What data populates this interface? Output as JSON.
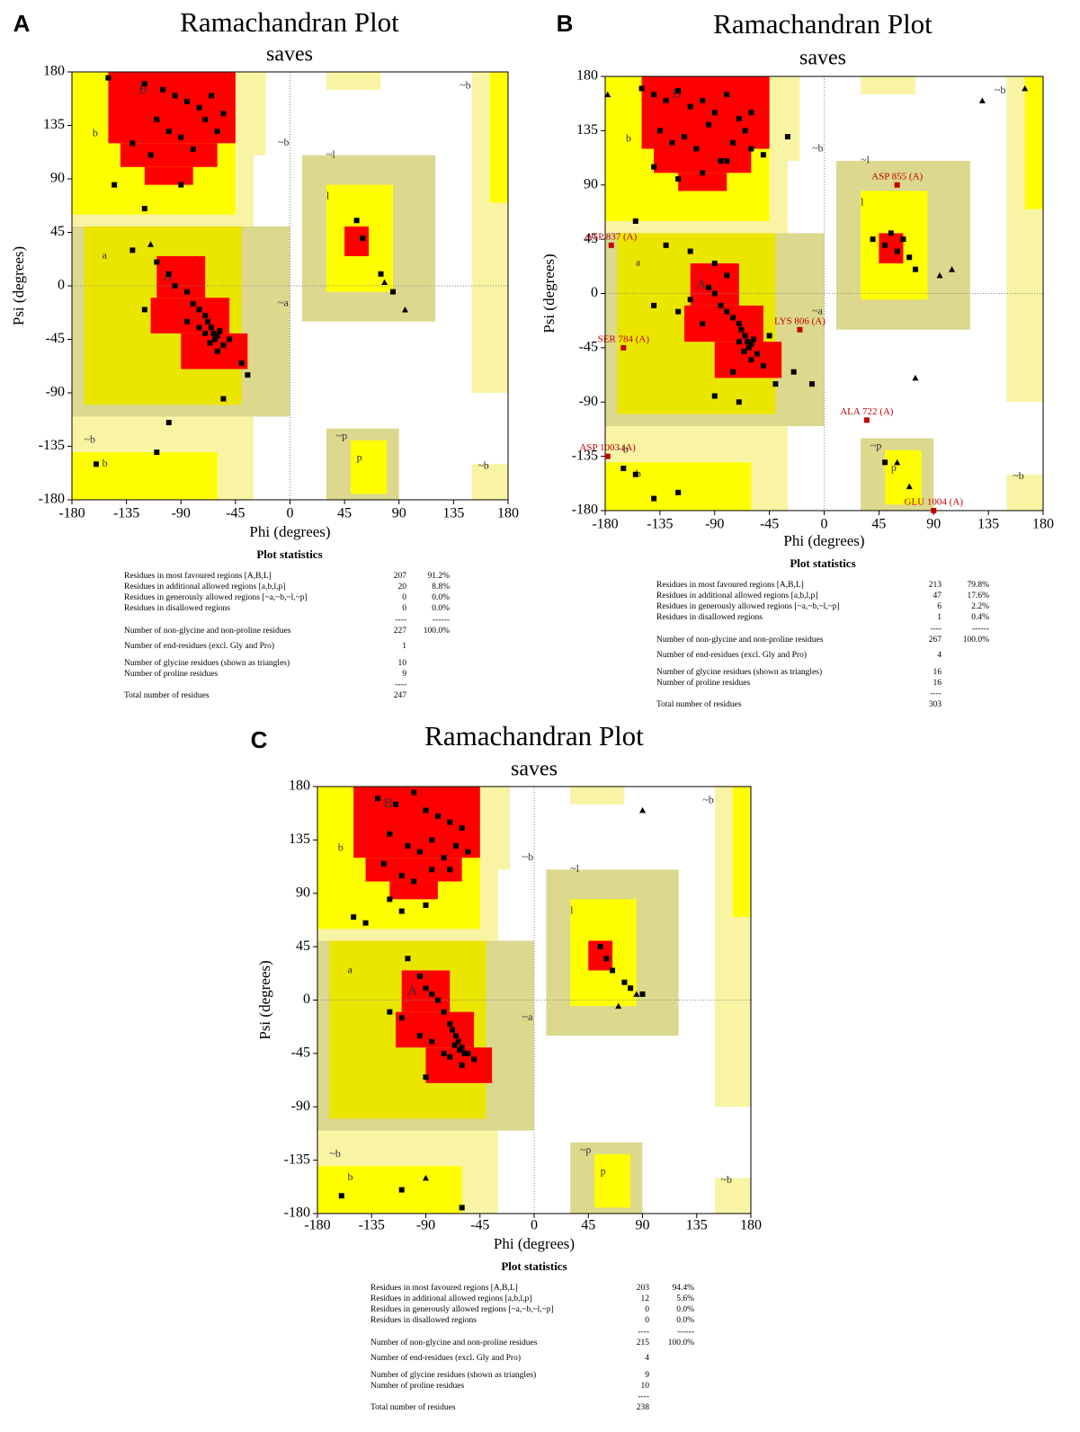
{
  "chart_data": [
    {
      "type": "scatter",
      "panel": "A",
      "title": "Ramachandran Plot",
      "subtitle": "saves",
      "x_label": "Phi (degrees)",
      "y_label": "Psi (degrees)",
      "xlim": [
        -180,
        180
      ],
      "ylim": [
        -180,
        180
      ],
      "xticks": [
        -180,
        -135,
        -90,
        -45,
        0,
        45,
        90,
        135,
        180
      ],
      "yticks": [
        -180,
        -135,
        -90,
        -45,
        0,
        45,
        90,
        135,
        180
      ],
      "region_labels": [
        "B",
        "b",
        "A",
        "a",
        "~b",
        "~l",
        "l",
        "~a",
        "~p",
        "p",
        "~b",
        "b",
        "~b",
        "~b"
      ],
      "series": [
        {
          "marker": "square",
          "color": "#000000",
          "x": [
            -120,
            -105,
            -95,
            -85,
            -75,
            -110,
            -100,
            -90,
            -70,
            -60,
            -130,
            -115,
            -80,
            -65,
            -55,
            -145,
            -90,
            -150,
            -120,
            -110,
            -100,
            -95,
            -85,
            -80,
            -75,
            -70,
            -68,
            -65,
            -63,
            -60,
            -62,
            -58,
            -66,
            -70,
            -55,
            -60,
            -75,
            -85,
            -50,
            -40,
            -35,
            -55,
            -100,
            -130,
            -120,
            55,
            60,
            75,
            85,
            -110,
            -160
          ],
          "values": [
            170,
            165,
            160,
            155,
            150,
            140,
            130,
            125,
            140,
            130,
            120,
            110,
            115,
            160,
            145,
            85,
            85,
            175,
            65,
            20,
            10,
            0,
            -5,
            -15,
            -20,
            -25,
            -30,
            -35,
            -40,
            -42,
            -45,
            -38,
            -48,
            -40,
            -50,
            -55,
            -35,
            -30,
            -45,
            -65,
            -75,
            -95,
            -115,
            30,
            -20,
            55,
            40,
            10,
            -5,
            -140,
            -150
          ]
        },
        {
          "marker": "triangle",
          "color": "#000000",
          "x": [
            78,
            95,
            -115
          ],
          "values": [
            3,
            -20,
            35
          ]
        }
      ],
      "statistics": {
        "title": "Plot statistics",
        "rows": [
          {
            "label": "Residues in most favoured regions [A,B,L]",
            "count": 207,
            "percent": "91.2%"
          },
          {
            "label": "Residues in additional allowed regions [a,b,l,p]",
            "count": 20,
            "percent": "8.8%"
          },
          {
            "label": "Residues in generously allowed regions [~a,~b,~l,~p]",
            "count": 0,
            "percent": "0.0%"
          },
          {
            "label": "Residues in disallowed regions",
            "count": 0,
            "percent": "0.0%"
          },
          {
            "count": "----",
            "percent": "------"
          },
          {
            "label": "Number of non-glycine and non-proline residues",
            "count": 227,
            "percent": "100.0%"
          },
          {
            "label": "Number of end-residues (excl. Gly and Pro)",
            "count": 1
          },
          {
            "label": "Number of glycine residues (shown as triangles)",
            "count": 10
          },
          {
            "label": "Number of proline residues",
            "count": 9
          },
          {
            "count": "----"
          },
          {
            "label": "Total number of residues",
            "count": 247
          }
        ]
      }
    },
    {
      "type": "scatter",
      "panel": "B",
      "title": "Ramachandran Plot",
      "subtitle": "saves",
      "x_label": "Phi (degrees)",
      "y_label": "Psi (degrees)",
      "xlim": [
        -180,
        180
      ],
      "ylim": [
        -180,
        180
      ],
      "xticks": [
        -180,
        -135,
        -90,
        -45,
        0,
        45,
        90,
        135,
        180
      ],
      "yticks": [
        -180,
        -135,
        -90,
        -45,
        0,
        45,
        90,
        135,
        180
      ],
      "region_labels": [
        "B",
        "b",
        "A",
        "a",
        "~b",
        "~l",
        "l",
        "~a",
        "~p",
        "p",
        "~b",
        "b",
        "~b",
        "~b"
      ],
      "series": [
        {
          "marker": "square",
          "color": "#000000",
          "x": [
            -150,
            -140,
            -130,
            -120,
            -110,
            -100,
            -90,
            -80,
            -70,
            -60,
            -135,
            -125,
            -115,
            -105,
            -95,
            -85,
            -75,
            -65,
            -140,
            -120,
            -100,
            -80,
            -60,
            -50,
            -30,
            -155,
            -130,
            -110,
            -90,
            -80,
            -95,
            -90,
            -85,
            -80,
            -75,
            -70,
            -68,
            -65,
            -63,
            -60,
            -62,
            -58,
            -66,
            -70,
            -55,
            -60,
            -50,
            -45,
            -75,
            -40,
            -100,
            -110,
            -120,
            -140,
            -25,
            -10,
            -70,
            -90,
            50,
            55,
            60,
            65,
            40,
            70,
            75,
            -120,
            -140,
            -155,
            -165,
            50
          ],
          "values": [
            170,
            165,
            160,
            168,
            155,
            160,
            150,
            165,
            145,
            150,
            135,
            125,
            130,
            120,
            140,
            110,
            125,
            135,
            105,
            95,
            100,
            110,
            120,
            115,
            130,
            60,
            40,
            35,
            25,
            15,
            5,
            0,
            -10,
            -15,
            -20,
            -25,
            -30,
            -35,
            -40,
            -42,
            -45,
            -38,
            -48,
            -40,
            -50,
            -55,
            -60,
            -35,
            -65,
            -75,
            -25,
            -5,
            -15,
            -10,
            -65,
            -75,
            -90,
            -85,
            40,
            50,
            35,
            45,
            45,
            30,
            20,
            -165,
            -170,
            -150,
            -145,
            -140
          ]
        },
        {
          "marker": "triangle",
          "color": "#000000",
          "x": [
            -178,
            130,
            165,
            75,
            70,
            95,
            60,
            105
          ],
          "values": [
            165,
            160,
            170,
            -70,
            -160,
            15,
            -140,
            20
          ]
        },
        {
          "marker": "square",
          "color": "#c00000",
          "labels": [
            "ASP 837 (A)",
            "SER 784 (A)",
            "LYS 806 (A)",
            "ASP 855 (A)",
            "ALA 722 (A)",
            "ASP 1003 (A)",
            "GLU 1004 (A)"
          ],
          "x": [
            -175,
            -165,
            -20,
            60,
            35,
            -178,
            90
          ],
          "values": [
            40,
            -45,
            -30,
            90,
            -105,
            -135,
            -180
          ]
        }
      ],
      "statistics": {
        "title": "Plot statistics",
        "rows": [
          {
            "label": "Residues in most favoured regions [A,B,L]",
            "count": 213,
            "percent": "79.8%"
          },
          {
            "label": "Residues in additional allowed regions [a,b,l,p]",
            "count": 47,
            "percent": "17.6%"
          },
          {
            "label": "Residues in generously allowed regions [~a,~b,~l,~p]",
            "count": 6,
            "percent": "2.2%"
          },
          {
            "label": "Residues in disallowed regions",
            "count": 1,
            "percent": "0.4%"
          },
          {
            "count": "----",
            "percent": "------"
          },
          {
            "label": "Number of non-glycine and non-proline residues",
            "count": 267,
            "percent": "100.0%"
          },
          {
            "label": "Number of end-residues (excl. Gly and Pro)",
            "count": 4
          },
          {
            "label": "Number of glycine residues (shown as triangles)",
            "count": 16
          },
          {
            "label": "Number of proline residues",
            "count": 16
          },
          {
            "count": "----"
          },
          {
            "label": "Total number of residues",
            "count": 303
          }
        ]
      }
    },
    {
      "type": "scatter",
      "panel": "C",
      "title": "Ramachandran Plot",
      "subtitle": "saves",
      "x_label": "Phi (degrees)",
      "y_label": "Psi (degrees)",
      "xlim": [
        -180,
        180
      ],
      "ylim": [
        -180,
        180
      ],
      "xticks": [
        -180,
        -135,
        -90,
        -45,
        0,
        45,
        90,
        135,
        180
      ],
      "yticks": [
        -180,
        -135,
        -90,
        -45,
        0,
        45,
        90,
        135,
        180
      ],
      "region_labels": [
        "B",
        "b",
        "A",
        "a",
        "~b",
        "~l",
        "l",
        "~a",
        "~p",
        "p",
        "~b",
        "b",
        "~b",
        "~b"
      ],
      "series": [
        {
          "marker": "square",
          "color": "#000000",
          "x": [
            -130,
            -115,
            -100,
            -90,
            -80,
            -70,
            -60,
            -120,
            -105,
            -95,
            -85,
            -75,
            -65,
            -55,
            -125,
            -110,
            -100,
            -85,
            -70,
            -120,
            -110,
            -90,
            -150,
            -140,
            -105,
            -95,
            -90,
            -85,
            -80,
            -75,
            -70,
            -68,
            -65,
            -63,
            -60,
            -62,
            -58,
            -66,
            -70,
            -55,
            -60,
            -50,
            -75,
            -85,
            -95,
            -110,
            -120,
            -90,
            55,
            60,
            65,
            75,
            80,
            90,
            -110,
            -60,
            -160
          ],
          "values": [
            170,
            165,
            175,
            160,
            155,
            150,
            145,
            140,
            130,
            125,
            135,
            120,
            130,
            125,
            115,
            105,
            100,
            110,
            110,
            85,
            75,
            80,
            70,
            65,
            35,
            20,
            10,
            5,
            0,
            -10,
            -20,
            -25,
            -30,
            -35,
            -40,
            -42,
            -45,
            -38,
            -48,
            -45,
            -55,
            -50,
            -45,
            -35,
            -30,
            -15,
            -10,
            -65,
            45,
            35,
            25,
            15,
            10,
            5,
            -160,
            -175,
            -165
          ]
        },
        {
          "marker": "triangle",
          "color": "#000000",
          "x": [
            90,
            -90,
            70,
            85
          ],
          "values": [
            160,
            -150,
            -5,
            5
          ]
        }
      ],
      "statistics": {
        "title": "Plot statistics",
        "rows": [
          {
            "label": "Residues in most favoured regions [A,B,L]",
            "count": 203,
            "percent": "94.4%"
          },
          {
            "label": "Residues in additional allowed regions [a,b,l,p]",
            "count": 12,
            "percent": "5.6%"
          },
          {
            "label": "Residues in generously allowed regions [~a,~b,~l,~p]",
            "count": 0,
            "percent": "0.0%"
          },
          {
            "label": "Residues in disallowed regions",
            "count": 0,
            "percent": "0.0%"
          },
          {
            "count": "----",
            "percent": "------"
          },
          {
            "label": "Number of non-glycine and non-proline residues",
            "count": 215,
            "percent": "100.0%"
          },
          {
            "label": "Number of end-residues (excl. Gly and Pro)",
            "count": 4
          },
          {
            "label": "Number of glycine residues (shown as triangles)",
            "count": 9
          },
          {
            "label": "Number of proline residues",
            "count": 10
          },
          {
            "count": "----"
          },
          {
            "label": "Total number of residues",
            "count": 238
          }
        ]
      }
    }
  ]
}
